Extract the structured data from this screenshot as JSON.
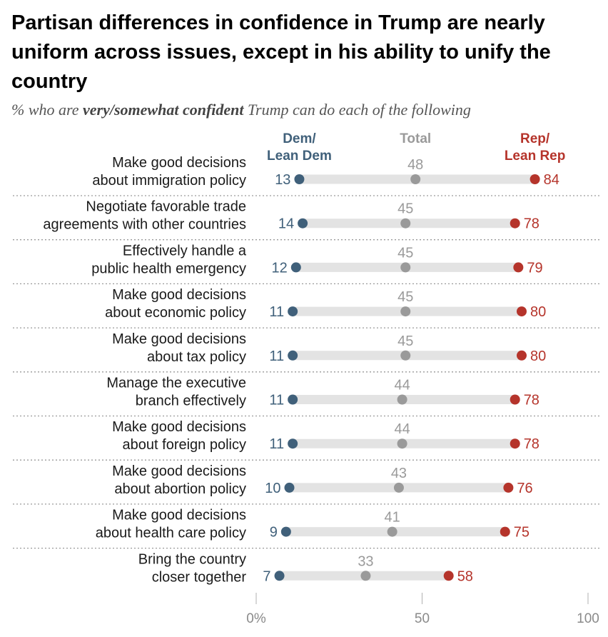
{
  "title": "Partisan differences in confidence in Trump are nearly uniform across issues, except in his ability to unify the country",
  "subtitle": {
    "prefix": "% who are ",
    "emphasis": "very/somewhat confident",
    "suffix": " Trump can do each of the following"
  },
  "chart_data": {
    "type": "dot",
    "x_ticks": [
      "0%",
      "50",
      "100"
    ],
    "xlim": [
      0,
      100
    ],
    "colors": {
      "dem": "#40607a",
      "total": "#9a9a9a",
      "rep": "#b5342b",
      "bar": "#e3e3e3"
    },
    "series": [
      {
        "key": "dem",
        "name": "Dem/ Lean Dem",
        "label_lines": [
          "Dem/",
          "Lean Dem"
        ]
      },
      {
        "key": "total",
        "name": "Total",
        "label_lines": [
          "Total"
        ]
      },
      {
        "key": "rep",
        "name": "Rep/ Lean Rep",
        "label_lines": [
          "Rep/",
          "Lean Rep"
        ]
      }
    ],
    "rows": [
      {
        "label": [
          "Make good decisions",
          "about immigration policy"
        ],
        "dem": 13,
        "total": 48,
        "rep": 84
      },
      {
        "label": [
          "Negotiate favorable trade",
          "agreements with other countries"
        ],
        "dem": 14,
        "total": 45,
        "rep": 78
      },
      {
        "label": [
          "Effectively handle a",
          "public health emergency"
        ],
        "dem": 12,
        "total": 45,
        "rep": 79
      },
      {
        "label": [
          "Make good decisions",
          "about economic policy"
        ],
        "dem": 11,
        "total": 45,
        "rep": 80
      },
      {
        "label": [
          "Make good decisions",
          "about tax policy"
        ],
        "dem": 11,
        "total": 45,
        "rep": 80
      },
      {
        "label": [
          "Manage the executive",
          "branch effectively"
        ],
        "dem": 11,
        "total": 44,
        "rep": 78
      },
      {
        "label": [
          "Make good decisions",
          "about foreign policy"
        ],
        "dem": 11,
        "total": 44,
        "rep": 78
      },
      {
        "label": [
          "Make good decisions",
          "about abortion policy"
        ],
        "dem": 10,
        "total": 43,
        "rep": 76
      },
      {
        "label": [
          "Make good decisions",
          "about health care policy"
        ],
        "dem": 9,
        "total": 41,
        "rep": 75
      },
      {
        "label": [
          "Bring the country",
          "closer together"
        ],
        "dem": 7,
        "total": 33,
        "rep": 58
      }
    ]
  }
}
